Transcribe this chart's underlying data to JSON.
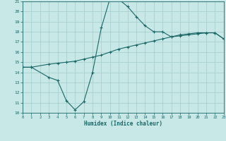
{
  "xlabel": "Humidex (Indice chaleur)",
  "background_color": "#c8e8e8",
  "grid_color": "#aad0d0",
  "line_color": "#1a6666",
  "xlim": [
    0,
    23
  ],
  "ylim": [
    10,
    21
  ],
  "line1_x": [
    0,
    1,
    3,
    4,
    5,
    6,
    7,
    8,
    9,
    10,
    11,
    12,
    13,
    14,
    15,
    16,
    17,
    18,
    19,
    20,
    21,
    22,
    23
  ],
  "line1_y": [
    14.5,
    14.5,
    13.5,
    13.2,
    11.2,
    10.3,
    11.1,
    14.0,
    18.4,
    21.3,
    21.2,
    20.5,
    19.5,
    18.6,
    18.0,
    18.0,
    17.5,
    17.7,
    17.8,
    17.9,
    17.9,
    17.9,
    17.3
  ],
  "line2_x": [
    0,
    1,
    3,
    4,
    5,
    6,
    7,
    8,
    9,
    10,
    11,
    12,
    13,
    14,
    15,
    16,
    17,
    18,
    19,
    20,
    21,
    22,
    23
  ],
  "line2_y": [
    14.5,
    14.5,
    14.8,
    14.9,
    15.0,
    15.1,
    15.3,
    15.5,
    15.7,
    16.0,
    16.3,
    16.5,
    16.7,
    16.9,
    17.1,
    17.3,
    17.5,
    17.6,
    17.7,
    17.8,
    17.9,
    17.9,
    17.3
  ]
}
